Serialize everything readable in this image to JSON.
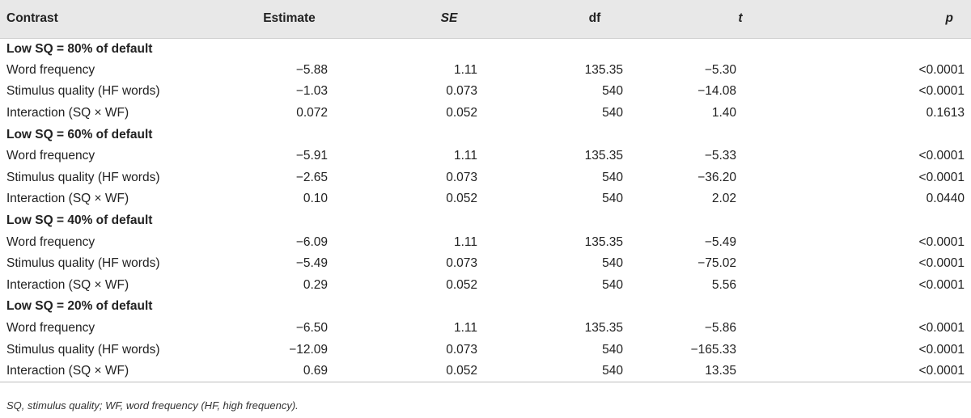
{
  "table": {
    "columns": [
      {
        "label": "Contrast",
        "italic": false
      },
      {
        "label": "Estimate",
        "italic": false
      },
      {
        "label": "SE",
        "italic": true
      },
      {
        "label": "df",
        "italic": false
      },
      {
        "label": "t",
        "italic": true
      },
      {
        "label": "p",
        "italic": true
      }
    ],
    "sections": [
      {
        "title": "Low SQ = 80% of default",
        "rows": [
          [
            "Word frequency",
            "−5.88",
            "1.11",
            "135.35",
            "−5.30",
            "<0.0001"
          ],
          [
            "Stimulus quality (HF words)",
            "−1.03",
            "0.073",
            "540",
            "−14.08",
            "<0.0001"
          ],
          [
            "Interaction (SQ × WF)",
            "0.072",
            "0.052",
            "540",
            "1.40",
            "0.1613"
          ]
        ]
      },
      {
        "title": "Low SQ = 60% of default",
        "rows": [
          [
            "Word frequency",
            "−5.91",
            "1.11",
            "135.35",
            "−5.33",
            "<0.0001"
          ],
          [
            "Stimulus quality (HF words)",
            "−2.65",
            "0.073",
            "540",
            "−36.20",
            "<0.0001"
          ],
          [
            "Interaction (SQ × WF)",
            "0.10",
            "0.052",
            "540",
            "2.02",
            "0.0440"
          ]
        ]
      },
      {
        "title": "Low SQ = 40% of default",
        "rows": [
          [
            "Word frequency",
            "−6.09",
            "1.11",
            "135.35",
            "−5.49",
            "<0.0001"
          ],
          [
            "Stimulus quality (HF words)",
            "−5.49",
            "0.073",
            "540",
            "−75.02",
            "<0.0001"
          ],
          [
            "Interaction (SQ × WF)",
            "0.29",
            "0.052",
            "540",
            "5.56",
            "<0.0001"
          ]
        ]
      },
      {
        "title": "Low SQ = 20% of default",
        "rows": [
          [
            "Word frequency",
            "−6.50",
            "1.11",
            "135.35",
            "−5.86",
            "<0.0001"
          ],
          [
            "Stimulus quality (HF words)",
            "−12.09",
            "0.073",
            "540",
            "−165.33",
            "<0.0001"
          ],
          [
            "Interaction (SQ × WF)",
            "0.69",
            "0.052",
            "540",
            "13.35",
            "<0.0001"
          ]
        ]
      }
    ]
  },
  "footnote": "SQ, stimulus quality; WF, word frequency (HF, high frequency).",
  "colors": {
    "header_bg": "#e8e8e8",
    "text": "#222222",
    "rule": "#bdbdbd"
  }
}
